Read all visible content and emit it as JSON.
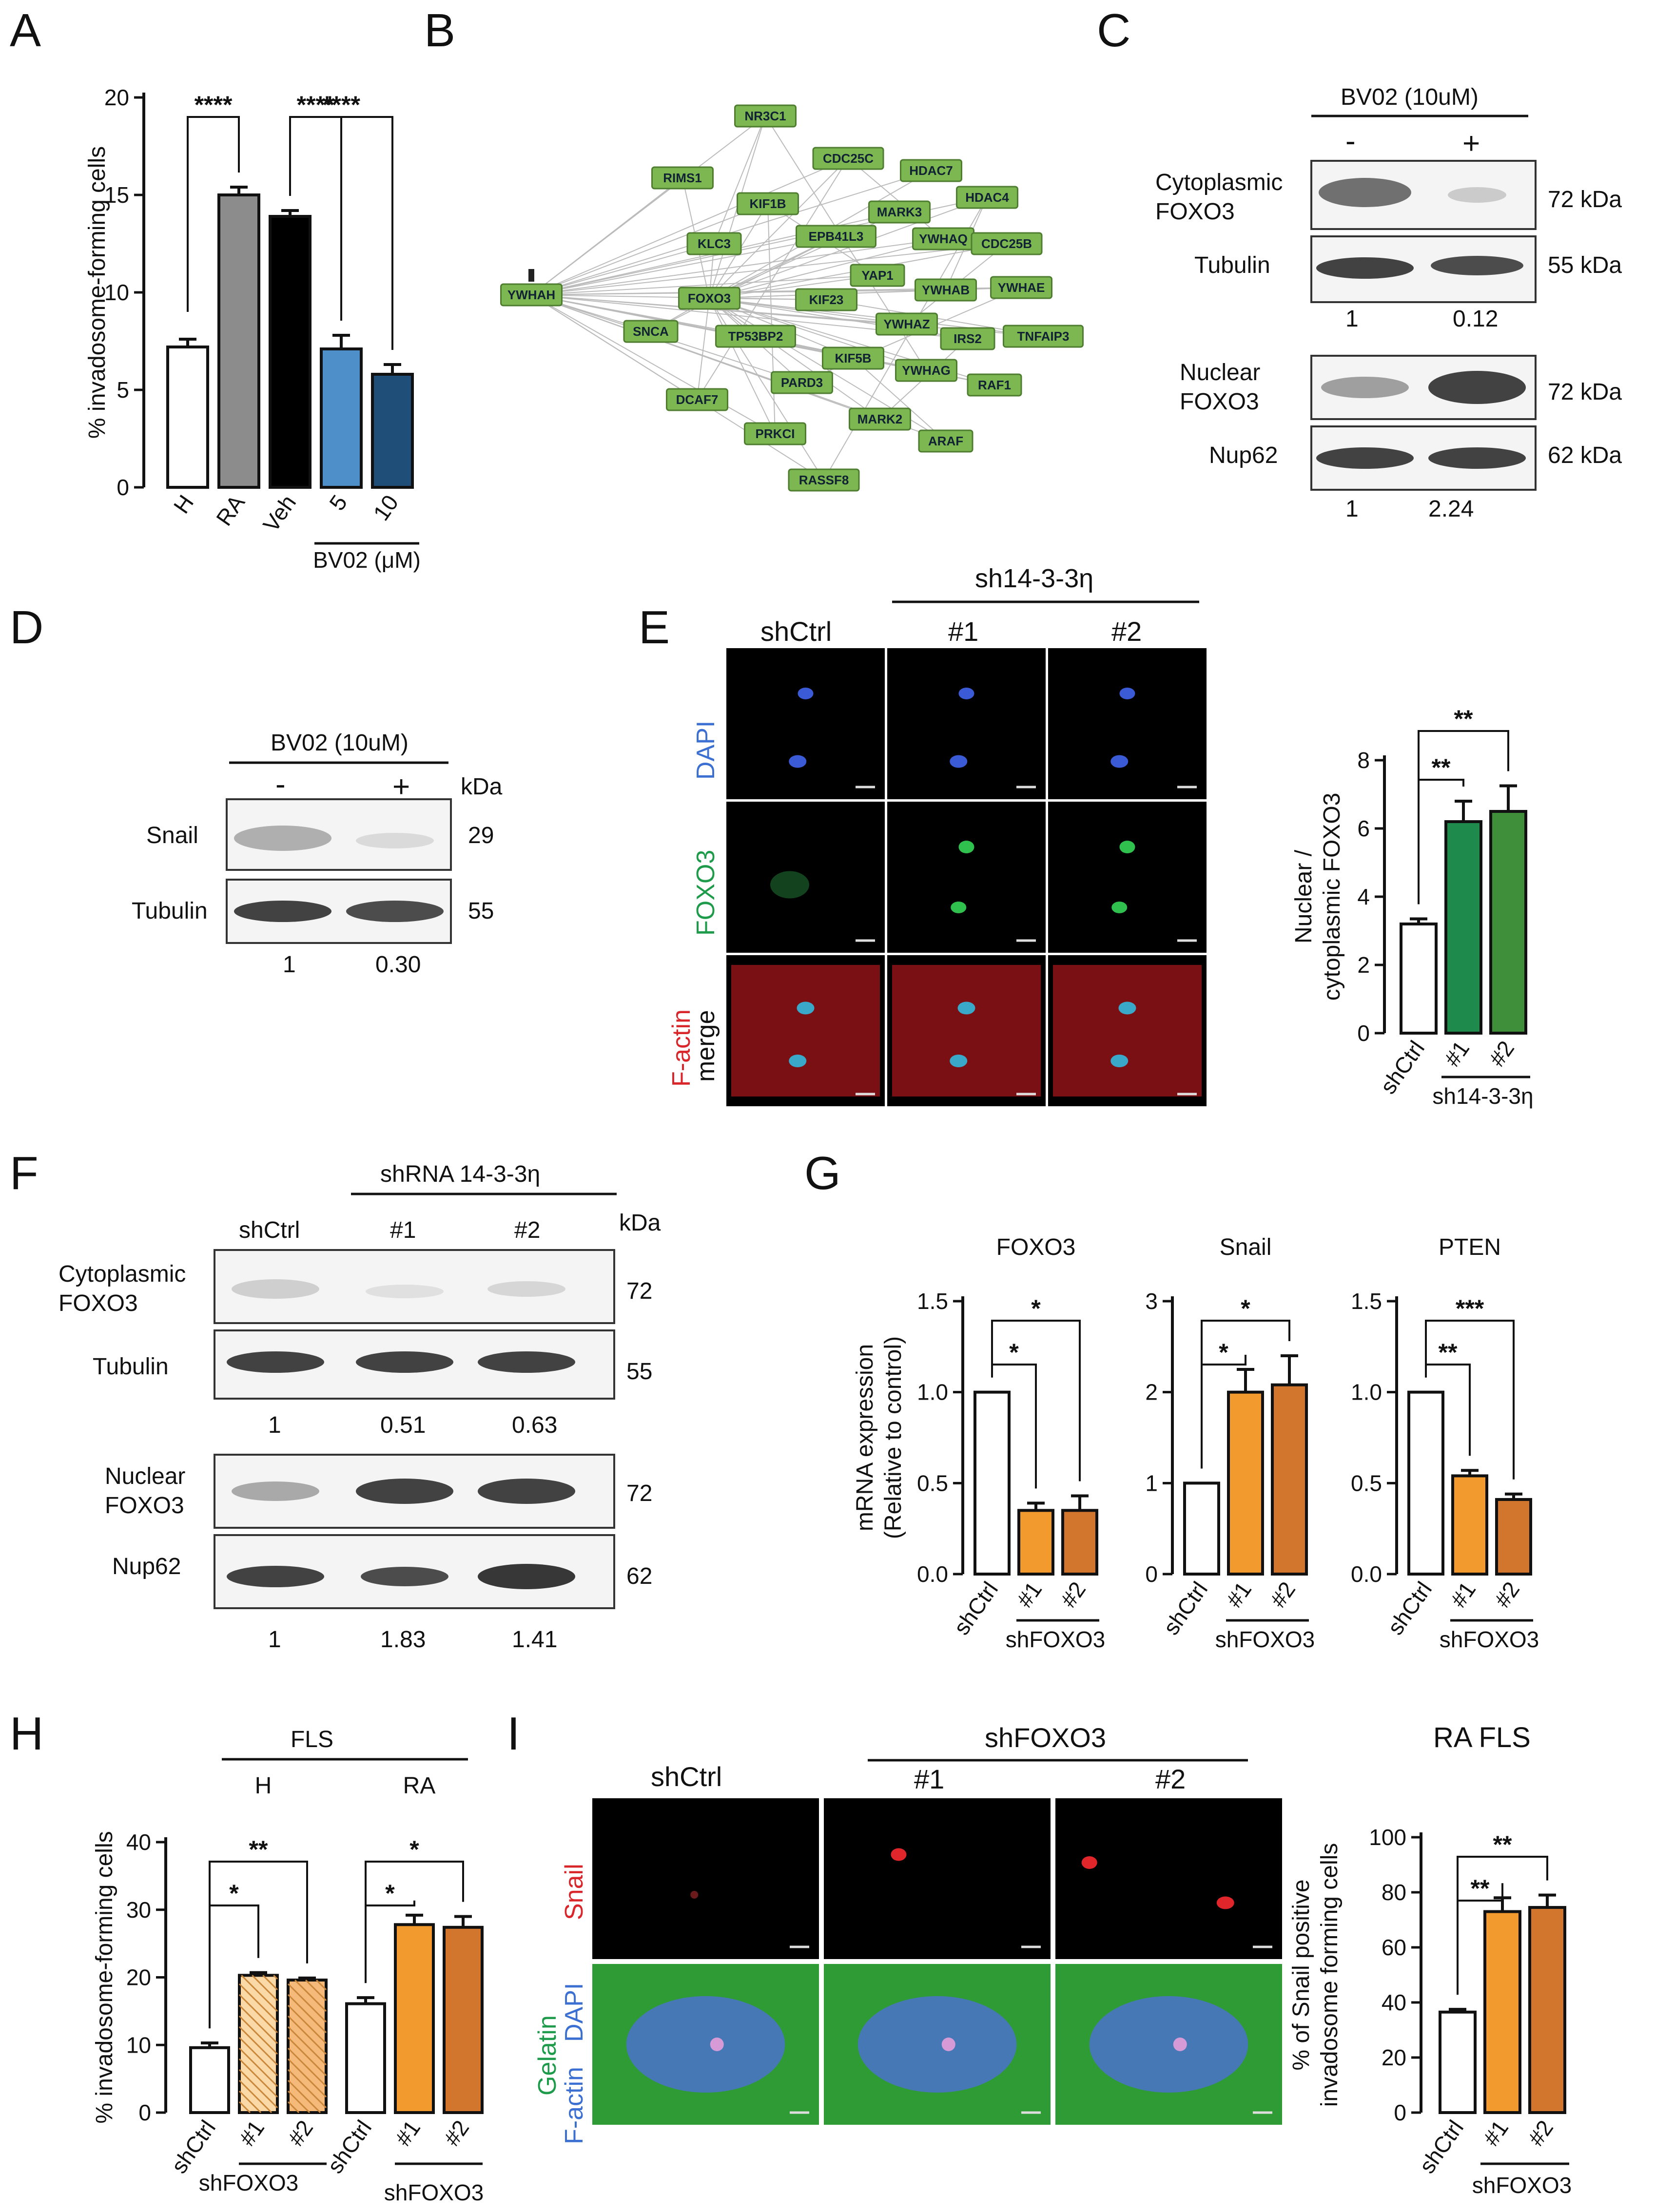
{
  "panels": {
    "A": {
      "label": "A",
      "chart_data": {
        "type": "bar",
        "ylabel": "% invadosome-forming cells",
        "ylim": [
          0,
          20
        ],
        "yticks": [
          0,
          5,
          10,
          15,
          20
        ],
        "categories": [
          "H",
          "RA",
          "Veh",
          "5",
          "10"
        ],
        "values": [
          7.2,
          15.0,
          13.9,
          7.1,
          5.8
        ],
        "errors": [
          0.4,
          0.4,
          0.3,
          0.7,
          0.5
        ],
        "colors": [
          "#ffffff",
          "#8c8c8c",
          "#000000",
          "#4f8fc9",
          "#1f4e79"
        ],
        "group_label": "BV02 (μM)",
        "significance": [
          {
            "from": 0,
            "to": 1,
            "text": "****"
          },
          {
            "from": 2,
            "to": 3,
            "text": "****"
          },
          {
            "from": 2,
            "to": 4,
            "text": "****"
          }
        ]
      }
    },
    "B": {
      "label": "B",
      "hub": "YWHAH",
      "center": "FOXO3",
      "nodes": [
        "NR3C1",
        "RIMS1",
        "CDC25C",
        "HDAC7",
        "KIF1B",
        "MARK3",
        "HDAC4",
        "KLC3",
        "EPB41L3",
        "YWHAQ",
        "CDC25B",
        "YAP1",
        "FOXO3",
        "KIF23",
        "YWHAB",
        "YWHAE",
        "SNCA",
        "TP53BP2",
        "YWHAZ",
        "IRS2",
        "TNFAIP3",
        "KIF5B",
        "PARD3",
        "YWHAG",
        "RAF1",
        "DCAF7",
        "MARK2",
        "PRKCI",
        "ARAF",
        "RASSF8"
      ]
    },
    "C": {
      "label": "C",
      "treatment": "BV02 (10uM)",
      "minus": "-",
      "plus": "+",
      "blots": [
        {
          "label": "Cytoplasmic\nFOXO3",
          "kda": "72 kDa"
        },
        {
          "label": "Tubulin",
          "kda": "55 kDa"
        },
        {
          "label": "Nuclear\nFOXO3",
          "kda": "72 kDa"
        },
        {
          "label": "Nup62",
          "kda": "62 kDa"
        }
      ],
      "quant_top": [
        "1",
        "0.12"
      ],
      "quant_bottom": [
        "1",
        "2.24"
      ]
    },
    "D": {
      "label": "D",
      "treatment": "BV02 (10uM)",
      "minus": "-",
      "plus": "+",
      "kda_header": "kDa",
      "blots": [
        {
          "label": "Snail",
          "kda": "29"
        },
        {
          "label": "Tubulin",
          "kda": "55"
        }
      ],
      "quant": [
        "1",
        "0.30"
      ]
    },
    "E": {
      "label": "E",
      "group_header": "sh14-3-3η",
      "columns": [
        "shCtrl",
        "#1",
        "#2"
      ],
      "rows": [
        "DAPI",
        "FOXO3",
        "F-actin",
        "merge"
      ],
      "chart_data": {
        "type": "bar",
        "ylabel": "Nuclear /\ncytoplasmic FOXO3",
        "ylim": [
          0,
          8
        ],
        "yticks": [
          0,
          2,
          4,
          6,
          8
        ],
        "categories": [
          "shCtrl",
          "#1",
          "#2"
        ],
        "values": [
          3.2,
          6.2,
          6.5
        ],
        "errors": [
          0.15,
          0.6,
          0.75
        ],
        "colors": [
          "#ffffff",
          "#1e8a4c",
          "#3f8f3a"
        ],
        "group_label": "sh14-3-3η",
        "significance": [
          {
            "from": 0,
            "to": 1,
            "text": "**"
          },
          {
            "from": 0,
            "to": 2,
            "text": "**"
          }
        ]
      }
    },
    "F": {
      "label": "F",
      "group_header": "shRNA 14-3-3η",
      "columns": [
        "shCtrl",
        "#1",
        "#2"
      ],
      "kda_header": "kDa",
      "blots": [
        {
          "label": "Cytoplasmic\nFOXO3",
          "kda": "72"
        },
        {
          "label": "Tubulin",
          "kda": "55"
        },
        {
          "label": "Nuclear\nFOXO3",
          "kda": "72"
        },
        {
          "label": "Nup62",
          "kda": "62"
        }
      ],
      "quant_top": [
        "1",
        "0.51",
        "0.63"
      ],
      "quant_bottom": [
        "1",
        "1.83",
        "1.41"
      ]
    },
    "G": {
      "label": "G",
      "ylabel": "mRNA expression\n(Relative to control)",
      "charts": [
        {
          "title": "FOXO3",
          "type": "bar",
          "ylim": [
            0,
            1.5
          ],
          "yticks": [
            "0.0",
            "0.5",
            "1.0",
            "1.5"
          ],
          "categories": [
            "shCtrl",
            "#1",
            "#2"
          ],
          "values": [
            1.0,
            0.35,
            0.35
          ],
          "errors": [
            0,
            0.04,
            0.08
          ],
          "group_label": "shFOXO3",
          "significance": [
            {
              "from": 0,
              "to": 1,
              "text": "*"
            },
            {
              "from": 0,
              "to": 2,
              "text": "*"
            }
          ]
        },
        {
          "title": "Snail",
          "type": "bar",
          "ylim": [
            0,
            3
          ],
          "yticks": [
            "0",
            "1",
            "2",
            "3"
          ],
          "categories": [
            "shCtrl",
            "#1",
            "#2"
          ],
          "values": [
            1.0,
            2.0,
            2.08
          ],
          "errors": [
            0,
            0.25,
            0.32
          ],
          "group_label": "shFOXO3",
          "significance": [
            {
              "from": 0,
              "to": 1,
              "text": "*"
            },
            {
              "from": 0,
              "to": 2,
              "text": "*"
            }
          ]
        },
        {
          "title": "PTEN",
          "type": "bar",
          "ylim": [
            0,
            1.5
          ],
          "yticks": [
            "0.0",
            "0.5",
            "1.0",
            "1.5"
          ],
          "categories": [
            "shCtrl",
            "#1",
            "#2"
          ],
          "values": [
            1.0,
            0.54,
            0.41
          ],
          "errors": [
            0,
            0.03,
            0.03
          ],
          "group_label": "shFOXO3",
          "significance": [
            {
              "from": 0,
              "to": 1,
              "text": "**"
            },
            {
              "from": 0,
              "to": 2,
              "text": "***"
            }
          ]
        }
      ],
      "colors": [
        "#ffffff",
        "#f29a2e",
        "#d2762d"
      ]
    },
    "H": {
      "label": "H",
      "header": "FLS",
      "subgroups": [
        "H",
        "RA"
      ],
      "chart_data": {
        "type": "bar",
        "ylabel": "% invadosome-forming cells",
        "ylim": [
          0,
          40
        ],
        "yticks": [
          0,
          10,
          20,
          30,
          40
        ],
        "categories": [
          "shCtrl",
          "#1",
          "#2",
          "shCtrl",
          "#1",
          "#2"
        ],
        "values": [
          9.6,
          20.3,
          19.6,
          16.1,
          27.8,
          27.4
        ],
        "errors": [
          0.7,
          0.4,
          0.3,
          0.9,
          1.4,
          1.6
        ],
        "colors": [
          "#ffffff",
          "#fbd9a6",
          "#f5b979",
          "#ffffff",
          "#f29a2e",
          "#d2762d"
        ],
        "group_labels": [
          "shFOXO3",
          "shFOXO3"
        ],
        "significance": [
          {
            "from": 0,
            "to": 1,
            "text": "*"
          },
          {
            "from": 0,
            "to": 2,
            "text": "**"
          },
          {
            "from": 3,
            "to": 4,
            "text": "*"
          },
          {
            "from": 3,
            "to": 5,
            "text": "*"
          }
        ]
      }
    },
    "I": {
      "label": "I",
      "group_header": "shFOXO3",
      "columns": [
        "shCtrl",
        "#1",
        "#2"
      ],
      "rows": [
        "Snail",
        "Gelatin",
        "F-actin",
        "DAPI"
      ],
      "chart_title": "RA FLS",
      "chart_data": {
        "type": "bar",
        "ylabel": "% of Snail positive\ninvadosome forming cells",
        "ylim": [
          0,
          100
        ],
        "yticks": [
          0,
          20,
          40,
          60,
          80,
          100
        ],
        "categories": [
          "shCtrl",
          "#1",
          "#2"
        ],
        "values": [
          36.5,
          73.0,
          74.5
        ],
        "errors": [
          1.0,
          5.0,
          4.5
        ],
        "colors": [
          "#ffffff",
          "#f29a2e",
          "#d2762d"
        ],
        "group_label": "shFOXO3",
        "significance": [
          {
            "from": 0,
            "to": 1,
            "text": "**"
          },
          {
            "from": 0,
            "to": 2,
            "text": "**"
          }
        ]
      }
    }
  }
}
